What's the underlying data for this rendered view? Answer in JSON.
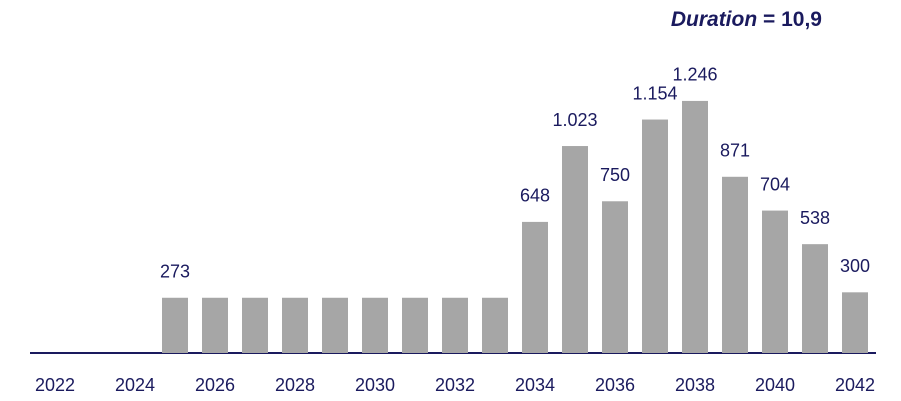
{
  "chart_data": {
    "type": "bar",
    "annotation": {
      "label": "Duration",
      "value": "= 10,9"
    },
    "categories": [
      "2022",
      null,
      "2024",
      null,
      "2026",
      null,
      "2028",
      null,
      "2030",
      null,
      "2032",
      null,
      "2034",
      null,
      "2036",
      null,
      "2038",
      null,
      "2040",
      null,
      "2042"
    ],
    "values": [
      null,
      null,
      null,
      273,
      273,
      273,
      273,
      273,
      273,
      273,
      273,
      273,
      648,
      1023,
      750,
      1154,
      1246,
      871,
      704,
      538,
      300
    ],
    "value_labels": [
      null,
      null,
      null,
      "273",
      null,
      null,
      null,
      null,
      null,
      null,
      null,
      null,
      "648",
      "1.023",
      "750",
      "1.154",
      "1.246",
      "871",
      "704",
      "538",
      "300"
    ],
    "color": "#a6a6a6",
    "ylim": [
      0,
      1300
    ]
  }
}
